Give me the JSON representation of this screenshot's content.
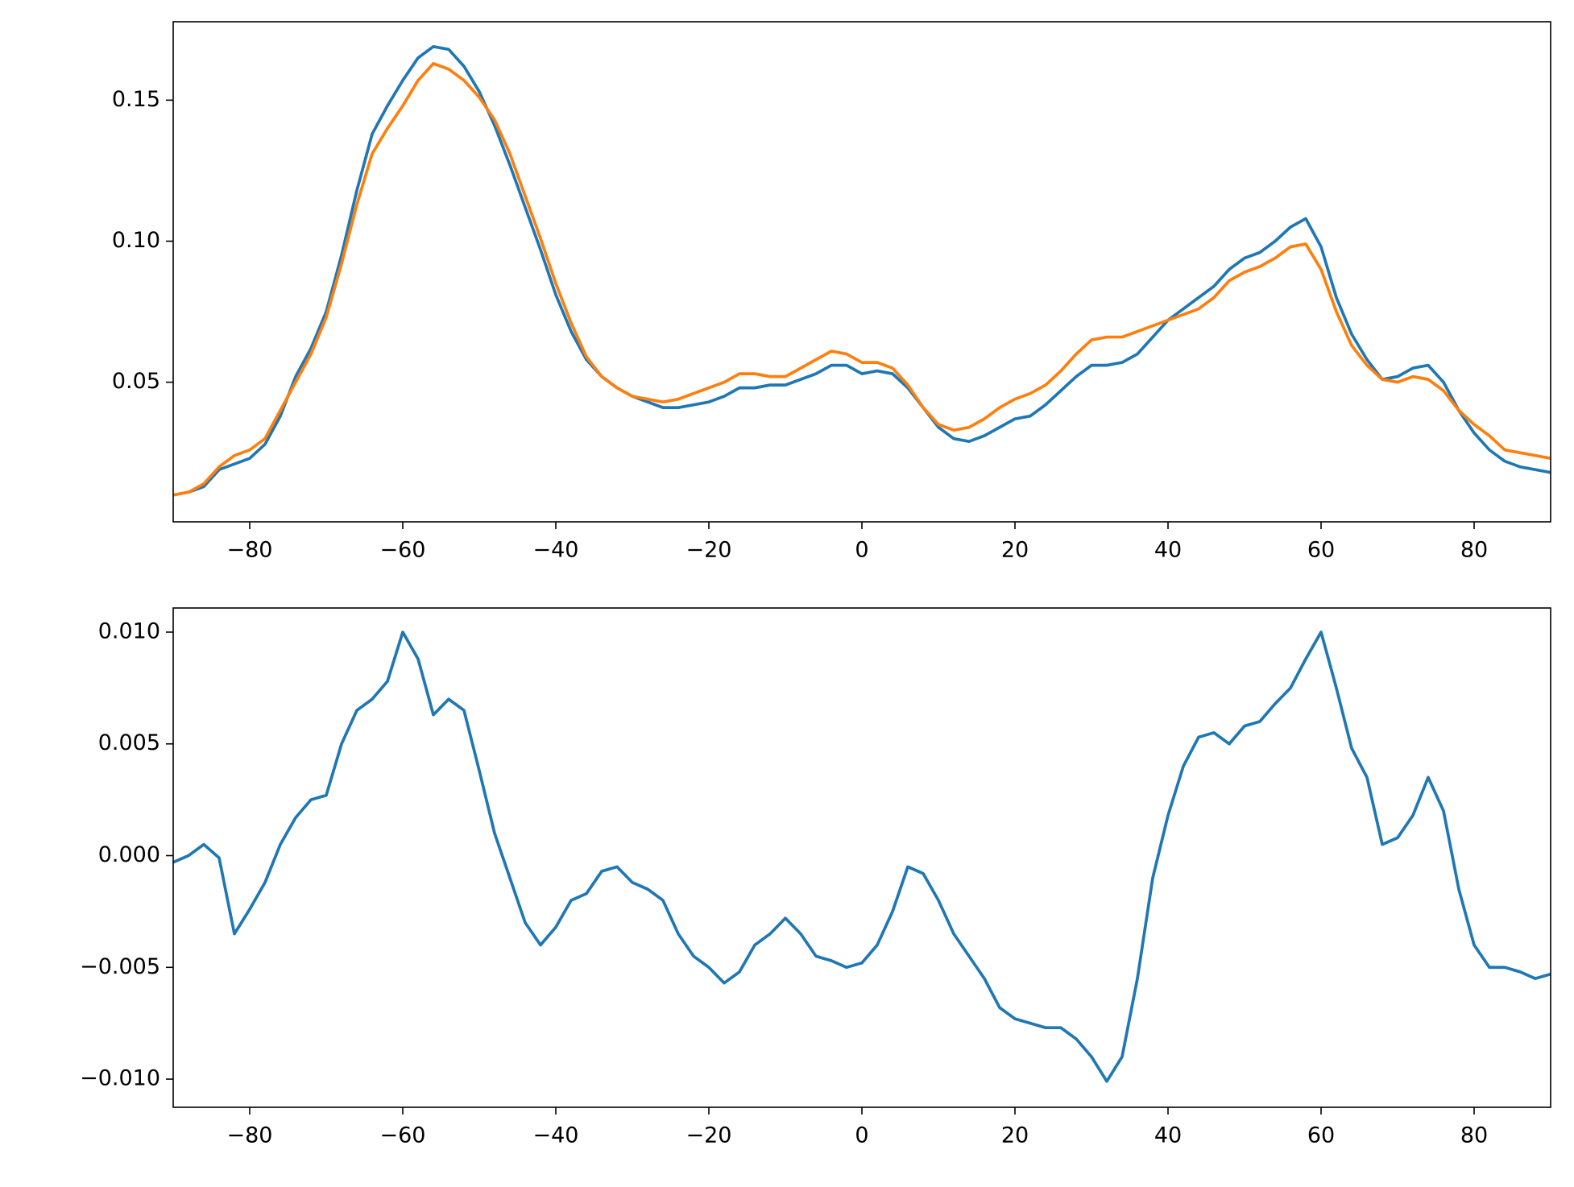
{
  "chart_data": [
    {
      "type": "line",
      "x": [
        -90,
        -88,
        -86,
        -84,
        -82,
        -80,
        -78,
        -76,
        -74,
        -72,
        -70,
        -68,
        -66,
        -64,
        -62,
        -60,
        -58,
        -56,
        -54,
        -52,
        -50,
        -48,
        -46,
        -44,
        -42,
        -40,
        -38,
        -36,
        -34,
        -32,
        -30,
        -28,
        -26,
        -24,
        -22,
        -20,
        -18,
        -16,
        -14,
        -12,
        -10,
        -8,
        -6,
        -4,
        -2,
        0,
        2,
        4,
        6,
        8,
        10,
        12,
        14,
        16,
        18,
        20,
        22,
        24,
        26,
        28,
        30,
        32,
        34,
        36,
        38,
        40,
        42,
        44,
        46,
        48,
        50,
        52,
        54,
        56,
        58,
        60,
        62,
        64,
        66,
        68,
        70,
        72,
        74,
        76,
        78,
        80,
        82,
        84,
        86,
        88,
        90
      ],
      "series": [
        {
          "color": "#1f77b4",
          "values": [
            0.01,
            0.011,
            0.013,
            0.019,
            0.021,
            0.023,
            0.028,
            0.038,
            0.052,
            0.062,
            0.075,
            0.095,
            0.118,
            0.138,
            0.148,
            0.157,
            0.165,
            0.169,
            0.168,
            0.162,
            0.153,
            0.141,
            0.127,
            0.112,
            0.097,
            0.081,
            0.068,
            0.058,
            0.052,
            0.048,
            0.045,
            0.043,
            0.041,
            0.041,
            0.042,
            0.043,
            0.045,
            0.048,
            0.048,
            0.049,
            0.049,
            0.051,
            0.053,
            0.056,
            0.056,
            0.053,
            0.054,
            0.053,
            0.048,
            0.041,
            0.034,
            0.03,
            0.029,
            0.031,
            0.034,
            0.037,
            0.038,
            0.042,
            0.047,
            0.052,
            0.056,
            0.056,
            0.057,
            0.06,
            0.066,
            0.072,
            0.076,
            0.08,
            0.084,
            0.09,
            0.094,
            0.096,
            0.1,
            0.105,
            0.108,
            0.098,
            0.08,
            0.067,
            0.058,
            0.051,
            0.052,
            0.055,
            0.056,
            0.05,
            0.04,
            0.032,
            0.026,
            0.022,
            0.02,
            0.019,
            0.018
          ]
        },
        {
          "color": "#ff7f0e",
          "values": [
            0.01,
            0.011,
            0.014,
            0.02,
            0.024,
            0.026,
            0.03,
            0.04,
            0.05,
            0.06,
            0.073,
            0.092,
            0.113,
            0.131,
            0.14,
            0.148,
            0.157,
            0.163,
            0.161,
            0.157,
            0.151,
            0.143,
            0.131,
            0.116,
            0.101,
            0.085,
            0.071,
            0.059,
            0.052,
            0.048,
            0.045,
            0.044,
            0.043,
            0.044,
            0.046,
            0.048,
            0.05,
            0.053,
            0.053,
            0.052,
            0.052,
            0.055,
            0.058,
            0.061,
            0.06,
            0.057,
            0.057,
            0.055,
            0.049,
            0.041,
            0.035,
            0.033,
            0.034,
            0.037,
            0.041,
            0.044,
            0.046,
            0.049,
            0.054,
            0.06,
            0.065,
            0.066,
            0.066,
            0.068,
            0.07,
            0.072,
            0.074,
            0.076,
            0.08,
            0.086,
            0.089,
            0.091,
            0.094,
            0.098,
            0.099,
            0.09,
            0.075,
            0.063,
            0.056,
            0.051,
            0.05,
            0.052,
            0.051,
            0.047,
            0.04,
            0.035,
            0.031,
            0.026,
            0.025,
            0.024,
            0.023
          ]
        }
      ],
      "xlim": [
        -90,
        90
      ],
      "xticks": [
        {
          "value": -80,
          "label": "−80"
        },
        {
          "value": -60,
          "label": "−60"
        },
        {
          "value": -40,
          "label": "−40"
        },
        {
          "value": -20,
          "label": "−20"
        },
        0,
        20,
        40,
        60,
        80
      ],
      "ylim": [
        0.0005,
        0.1778
      ],
      "yticks": [
        0.05,
        {
          "value": 0.1,
          "label": "0.10"
        },
        0.15
      ]
    },
    {
      "type": "line",
      "x": [
        -90,
        -88,
        -86,
        -84,
        -82,
        -80,
        -78,
        -76,
        -74,
        -72,
        -70,
        -68,
        -66,
        -64,
        -62,
        -60,
        -58,
        -56,
        -54,
        -52,
        -50,
        -48,
        -46,
        -44,
        -42,
        -40,
        -38,
        -36,
        -34,
        -32,
        -30,
        -28,
        -26,
        -24,
        -22,
        -20,
        -18,
        -16,
        -14,
        -12,
        -10,
        -8,
        -6,
        -4,
        -2,
        0,
        2,
        4,
        6,
        8,
        10,
        12,
        14,
        16,
        18,
        20,
        22,
        24,
        26,
        28,
        30,
        32,
        34,
        36,
        38,
        40,
        42,
        44,
        46,
        48,
        50,
        52,
        54,
        56,
        58,
        60,
        62,
        64,
        66,
        68,
        70,
        72,
        74,
        76,
        78,
        80,
        82,
        84,
        86,
        88,
        90
      ],
      "series": [
        {
          "color": "#1f77b4",
          "values": [
            -0.0003,
            0.0,
            0.0005,
            -0.0001,
            -0.0035,
            -0.0024,
            -0.0012,
            0.0005,
            0.0017,
            0.0025,
            0.0027,
            0.005,
            0.0065,
            0.007,
            0.0078,
            0.01,
            0.0088,
            0.0063,
            0.007,
            0.0065,
            0.0038,
            0.001,
            -0.001,
            -0.003,
            -0.004,
            -0.0032,
            -0.002,
            -0.0017,
            -0.0007,
            -0.0005,
            -0.0012,
            -0.0015,
            -0.002,
            -0.0035,
            -0.0045,
            -0.005,
            -0.0057,
            -0.0052,
            -0.004,
            -0.0035,
            -0.0028,
            -0.0035,
            -0.0045,
            -0.0047,
            -0.005,
            -0.0048,
            -0.004,
            -0.0025,
            -0.0005,
            -0.0008,
            -0.002,
            -0.0035,
            -0.0045,
            -0.0055,
            -0.0068,
            -0.0073,
            -0.0075,
            -0.0077,
            -0.0077,
            -0.0082,
            -0.009,
            -0.0101,
            -0.009,
            -0.0055,
            -0.001,
            0.0018,
            0.004,
            0.0053,
            0.0055,
            0.005,
            0.0058,
            0.006,
            0.0068,
            0.0075,
            0.0088,
            0.01,
            0.0075,
            0.0048,
            0.0035,
            0.0005,
            0.0008,
            0.0018,
            0.0035,
            0.002,
            -0.0015,
            -0.004,
            -0.005,
            -0.005,
            -0.0052,
            -0.0055,
            -0.0053
          ]
        }
      ],
      "xlim": [
        -90,
        90
      ],
      "xticks": [
        {
          "value": -80,
          "label": "−80"
        },
        {
          "value": -60,
          "label": "−60"
        },
        {
          "value": -40,
          "label": "−40"
        },
        {
          "value": -20,
          "label": "−20"
        },
        0,
        20,
        40,
        60,
        80
      ],
      "ylim": [
        -0.01126,
        0.01108
      ],
      "yticks": [
        {
          "value": -0.01,
          "label": "−0.010"
        },
        {
          "value": -0.005,
          "label": "−0.005"
        },
        {
          "value": 0,
          "label": "0.000"
        },
        {
          "value": 0.005,
          "label": "0.005"
        },
        {
          "value": 0.01,
          "label": "0.010"
        }
      ]
    }
  ]
}
